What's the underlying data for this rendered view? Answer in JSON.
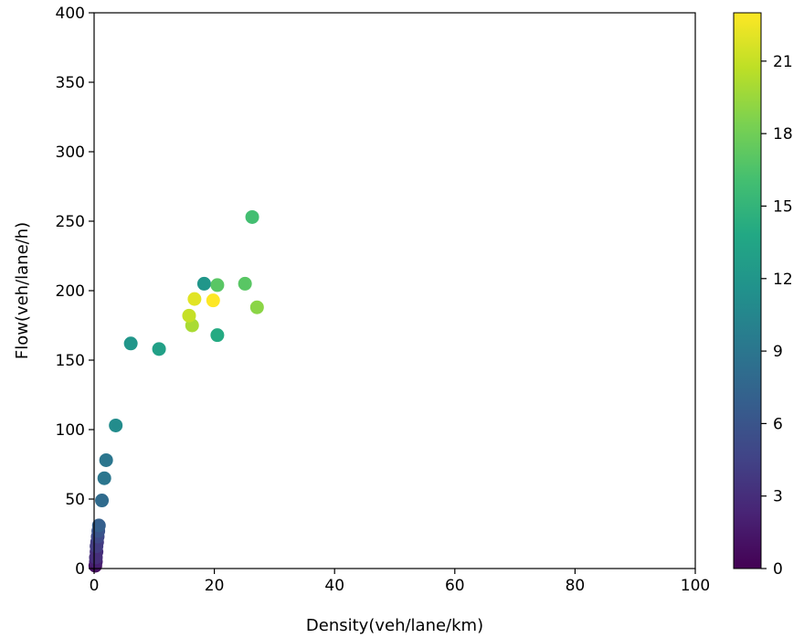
{
  "chart_data": {
    "type": "scatter",
    "xlabel": "Density(veh/lane/km)",
    "ylabel": "Flow(veh/lane/h)",
    "xlim": [
      0,
      100
    ],
    "ylim": [
      0,
      400
    ],
    "x_ticks": [
      "0",
      "20",
      "40",
      "60",
      "80",
      "100"
    ],
    "y_ticks": [
      "0",
      "50",
      "100",
      "150",
      "200",
      "250",
      "300",
      "350",
      "400"
    ],
    "grid": false,
    "colorbar": {
      "colormap": "viridis",
      "range": [
        0,
        23
      ],
      "ticks": [
        "0",
        "3",
        "6",
        "9",
        "12",
        "15",
        "18",
        "21"
      ]
    },
    "points": [
      {
        "x": 0.2,
        "y": 2,
        "c": 1
      },
      {
        "x": 0.3,
        "y": 5,
        "c": 2
      },
      {
        "x": 0.3,
        "y": 8,
        "c": 3
      },
      {
        "x": 0.4,
        "y": 12,
        "c": 3
      },
      {
        "x": 0.4,
        "y": 16,
        "c": 4
      },
      {
        "x": 0.5,
        "y": 19,
        "c": 4
      },
      {
        "x": 0.6,
        "y": 23,
        "c": 5
      },
      {
        "x": 0.7,
        "y": 27,
        "c": 6
      },
      {
        "x": 0.8,
        "y": 31,
        "c": 7
      },
      {
        "x": 1.3,
        "y": 49,
        "c": 8
      },
      {
        "x": 1.7,
        "y": 65,
        "c": 9
      },
      {
        "x": 2.0,
        "y": 78,
        "c": 9
      },
      {
        "x": 3.6,
        "y": 103,
        "c": 11
      },
      {
        "x": 6.1,
        "y": 162,
        "c": 12
      },
      {
        "x": 10.8,
        "y": 158,
        "c": 13
      },
      {
        "x": 18.3,
        "y": 205,
        "c": 12
      },
      {
        "x": 20.5,
        "y": 168,
        "c": 14
      },
      {
        "x": 16.3,
        "y": 175,
        "c": 20
      },
      {
        "x": 15.8,
        "y": 182,
        "c": 21
      },
      {
        "x": 16.7,
        "y": 194,
        "c": 22
      },
      {
        "x": 19.8,
        "y": 193,
        "c": 23
      },
      {
        "x": 20.5,
        "y": 204,
        "c": 17
      },
      {
        "x": 25.1,
        "y": 205,
        "c": 17
      },
      {
        "x": 27.1,
        "y": 188,
        "c": 19
      },
      {
        "x": 26.3,
        "y": 253,
        "c": 16
      }
    ]
  }
}
